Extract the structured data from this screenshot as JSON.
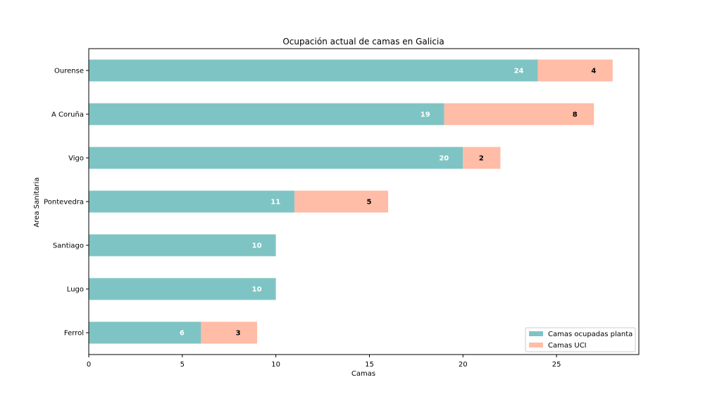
{
  "chart_data": {
    "type": "bar",
    "orientation": "horizontal",
    "stacked": true,
    "title": "Ocupación actual de camas en Galicia",
    "xlabel": "Camas",
    "ylabel": "Area Sanitaria",
    "categories": [
      "Ourense",
      "A Coruña",
      "Vigo",
      "Pontevedra",
      "Santiago",
      "Lugo",
      "Ferrol"
    ],
    "series": [
      {
        "name": "Camas ocupadas planta",
        "values": [
          24,
          19,
          20,
          11,
          10,
          10,
          6
        ],
        "color": "#7fc4c4",
        "label_color": "#ffffff"
      },
      {
        "name": "Camas UCI",
        "values": [
          4,
          8,
          2,
          5,
          0,
          0,
          3
        ],
        "color": "#ffbca6",
        "label_color": "#000000"
      }
    ],
    "xlim": [
      0,
      29.4
    ],
    "xticks": [
      0,
      5,
      10,
      15,
      20,
      25
    ],
    "grid": false,
    "legend_position": "lower-right"
  }
}
